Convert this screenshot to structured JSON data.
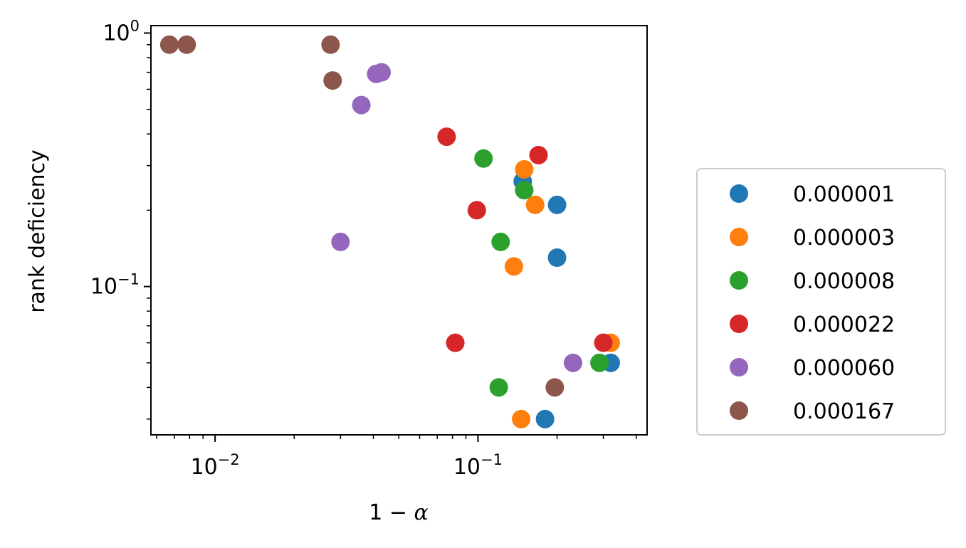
{
  "chart_data": {
    "type": "scatter",
    "title": "",
    "xlabel": "1 − α",
    "ylabel": "rank deficiency",
    "xscale": "log",
    "yscale": "log",
    "xlim": [
      0.0057,
      0.44
    ],
    "ylim": [
      0.026,
      1.07
    ],
    "x_ticks": [
      {
        "value": 0.01,
        "base": "10",
        "exp": "−2"
      },
      {
        "value": 0.1,
        "base": "10",
        "exp": "−1"
      }
    ],
    "y_ticks": [
      {
        "value": 1,
        "base": "10",
        "exp": "0"
      },
      {
        "value": 0.1,
        "base": "10",
        "exp": "−1"
      }
    ],
    "grid": false,
    "legend": {
      "placement": "right"
    },
    "series": [
      {
        "name": "0.000001",
        "color": "#1f77b4",
        "points": [
          [
            0.148,
            0.26
          ],
          [
            0.2,
            0.21
          ],
          [
            0.2,
            0.13
          ],
          [
            0.32,
            0.05
          ],
          [
            0.18,
            0.03
          ]
        ]
      },
      {
        "name": "0.000003",
        "color": "#ff7f0e",
        "points": [
          [
            0.15,
            0.29
          ],
          [
            0.165,
            0.21
          ],
          [
            0.137,
            0.12
          ],
          [
            0.32,
            0.06
          ],
          [
            0.146,
            0.03
          ]
        ]
      },
      {
        "name": "0.000008",
        "color": "#2ca02c",
        "points": [
          [
            0.105,
            0.32
          ],
          [
            0.15,
            0.24
          ],
          [
            0.122,
            0.15
          ],
          [
            0.29,
            0.05
          ],
          [
            0.12,
            0.04
          ]
        ]
      },
      {
        "name": "0.000022",
        "color": "#d62728",
        "points": [
          [
            0.076,
            0.39
          ],
          [
            0.17,
            0.33
          ],
          [
            0.099,
            0.2
          ],
          [
            0.082,
            0.06
          ],
          [
            0.3,
            0.06
          ]
        ]
      },
      {
        "name": "0.000060",
        "color": "#9467bd",
        "points": [
          [
            0.043,
            0.7
          ],
          [
            0.041,
            0.69
          ],
          [
            0.036,
            0.52
          ],
          [
            0.03,
            0.15
          ],
          [
            0.23,
            0.05
          ]
        ]
      },
      {
        "name": "0.000167",
        "color": "#8c564b",
        "points": [
          [
            0.0067,
            0.9
          ],
          [
            0.0078,
            0.9
          ],
          [
            0.0275,
            0.9
          ],
          [
            0.028,
            0.65
          ],
          [
            0.196,
            0.04
          ]
        ]
      }
    ]
  }
}
